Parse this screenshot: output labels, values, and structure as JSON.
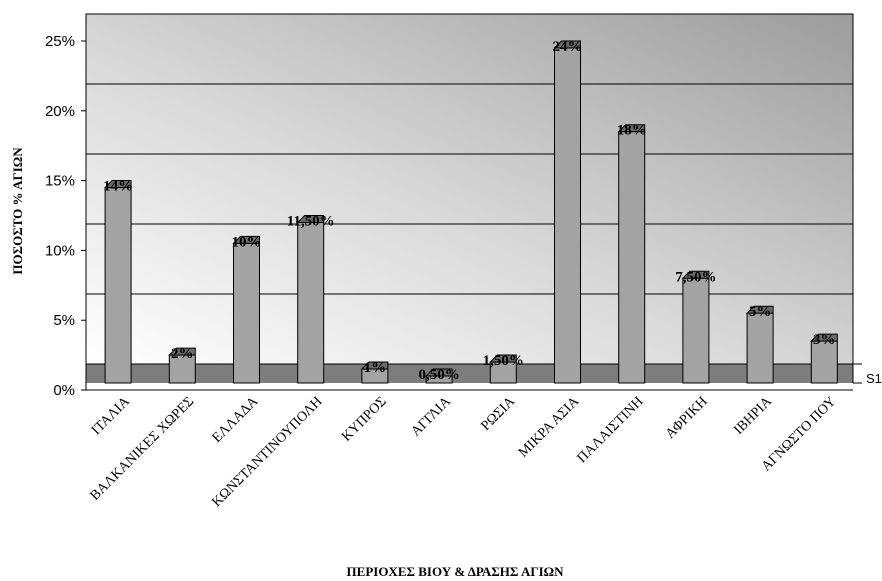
{
  "chart_data": {
    "type": "bar",
    "categories": [
      "ΙΤΑΛΙΑ",
      "ΒΑΛΚΑΝΙΚΕΣ ΧΩΡΕΣ",
      "ΕΛΛΑΔΑ",
      "ΚΩΝΣΤΑΝΤΙΝΟΥΠΟΛΗ",
      "ΚΥΠΡΟΣ",
      "ΑΓΓΛΙΑ",
      "ΡΩΣΙΑ",
      "ΜΙΚΡΑ ΑΣΙΑ",
      "ΠΑΛΑΙΣΤΙΝΗ",
      "ΑΦΡΙΚΗ",
      "ΙΒΗΡΙΑ",
      "ΑΓΝΩΣΤΟ ΠΟΥ"
    ],
    "series": [
      {
        "name": "S1",
        "values": [
          14,
          2,
          10,
          11.5,
          1,
          0.5,
          1.5,
          24,
          18,
          7.5,
          5,
          3
        ],
        "labels": [
          "14%",
          "2%",
          "10%",
          "11,50%",
          "1%",
          "0,50%",
          "1,50%",
          "24%",
          "18%",
          "7,50%",
          "5%",
          "3%"
        ]
      }
    ],
    "title": "",
    "xlabel": "ΠΕΡΙΟΧΕΣ ΒΙΟΥ & ΔΡΑΣΗΣ ΑΓΙΩΝ",
    "ylabel": "ΠΟΣΟΣΤΟ % ΑΓΙΩΝ",
    "ylim": [
      0,
      25
    ],
    "yticks": [
      "0%",
      "5%",
      "10%",
      "15%",
      "20%",
      "25%"
    ],
    "grid": true,
    "view": "3d",
    "colors": {
      "bar": "#a3a3a3",
      "bar_top": "#6b6b6b",
      "floor": "#7d7d7d",
      "wall_dark": "#9e9e9e",
      "wall_light": "#ffffff"
    }
  }
}
